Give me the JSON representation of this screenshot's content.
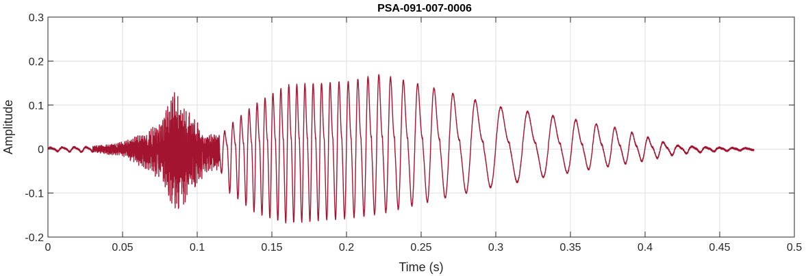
{
  "chart_data": {
    "type": "line",
    "title": "PSA-091-007-0006",
    "xlabel": "Time (s)",
    "ylabel": "Amplitude",
    "xlim": [
      0,
      0.5
    ],
    "ylim": [
      -0.2,
      0.3
    ],
    "xticks": [
      0,
      0.05,
      0.1,
      0.15,
      0.2,
      0.25,
      0.3,
      0.35,
      0.4,
      0.45,
      0.5
    ],
    "xtick_labels": [
      "0",
      "0.05",
      "0.1",
      "0.15",
      "0.2",
      "0.25",
      "0.3",
      "0.35",
      "0.4",
      "0.45",
      "0.5"
    ],
    "yticks": [
      -0.2,
      -0.1,
      0,
      0.1,
      0.2,
      0.3
    ],
    "ytick_labels": [
      "-0.2",
      "-0.1",
      "0",
      "0.1",
      "0.2",
      "0.3"
    ],
    "grid": true,
    "line_color": "#A2142F",
    "series": [
      {
        "signal_end": 0.473,
        "envelope": [
          {
            "t": 0.0,
            "pos": 0.004,
            "neg": -0.004
          },
          {
            "t": 0.03,
            "pos": 0.006,
            "neg": -0.007
          },
          {
            "t": 0.05,
            "pos": 0.015,
            "neg": -0.015
          },
          {
            "t": 0.065,
            "pos": 0.035,
            "neg": -0.04
          },
          {
            "t": 0.075,
            "pos": 0.055,
            "neg": -0.06
          },
          {
            "t": 0.085,
            "pos": 0.12,
            "neg": -0.13
          },
          {
            "t": 0.095,
            "pos": 0.08,
            "neg": -0.1
          },
          {
            "t": 0.105,
            "pos": 0.03,
            "neg": -0.05
          },
          {
            "t": 0.115,
            "pos": 0.03,
            "neg": -0.04
          },
          {
            "t": 0.12,
            "pos": 0.06,
            "neg": -0.09
          },
          {
            "t": 0.14,
            "pos": 0.13,
            "neg": -0.14
          },
          {
            "t": 0.16,
            "pos": 0.18,
            "neg": -0.16
          },
          {
            "t": 0.2,
            "pos": 0.19,
            "neg": -0.15
          },
          {
            "t": 0.222,
            "pos": 0.21,
            "neg": -0.14
          },
          {
            "t": 0.26,
            "pos": 0.17,
            "neg": -0.11
          },
          {
            "t": 0.3,
            "pos": 0.12,
            "neg": -0.08
          },
          {
            "t": 0.35,
            "pos": 0.085,
            "neg": -0.05
          },
          {
            "t": 0.38,
            "pos": 0.06,
            "neg": -0.035
          },
          {
            "t": 0.4,
            "pos": 0.035,
            "neg": -0.025
          },
          {
            "t": 0.42,
            "pos": 0.01,
            "neg": -0.012
          },
          {
            "t": 0.44,
            "pos": 0.005,
            "neg": -0.006
          },
          {
            "t": 0.473,
            "pos": 0.002,
            "neg": -0.002
          }
        ]
      }
    ]
  }
}
